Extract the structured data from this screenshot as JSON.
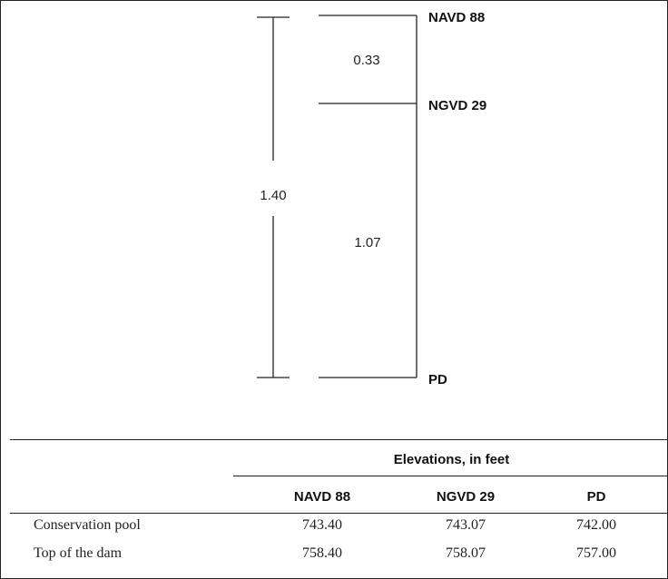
{
  "datums": [
    {
      "label": "NAVD 88"
    },
    {
      "label": "NGVD 29"
    },
    {
      "label": "PD"
    }
  ],
  "differences": {
    "navd_ngvd": "0.33",
    "ngvd_pd": "1.07",
    "navd_pd": "1.40"
  },
  "table": {
    "group_header": "Elevations, in feet",
    "columns": [
      "NAVD 88",
      "NGVD 29",
      "PD"
    ],
    "rows": [
      {
        "label": "Conservation pool",
        "values": [
          "743.40",
          "743.07",
          "742.00"
        ]
      },
      {
        "label": "Top of the dam",
        "values": [
          "758.40",
          "758.07",
          "757.00"
        ]
      }
    ]
  }
}
